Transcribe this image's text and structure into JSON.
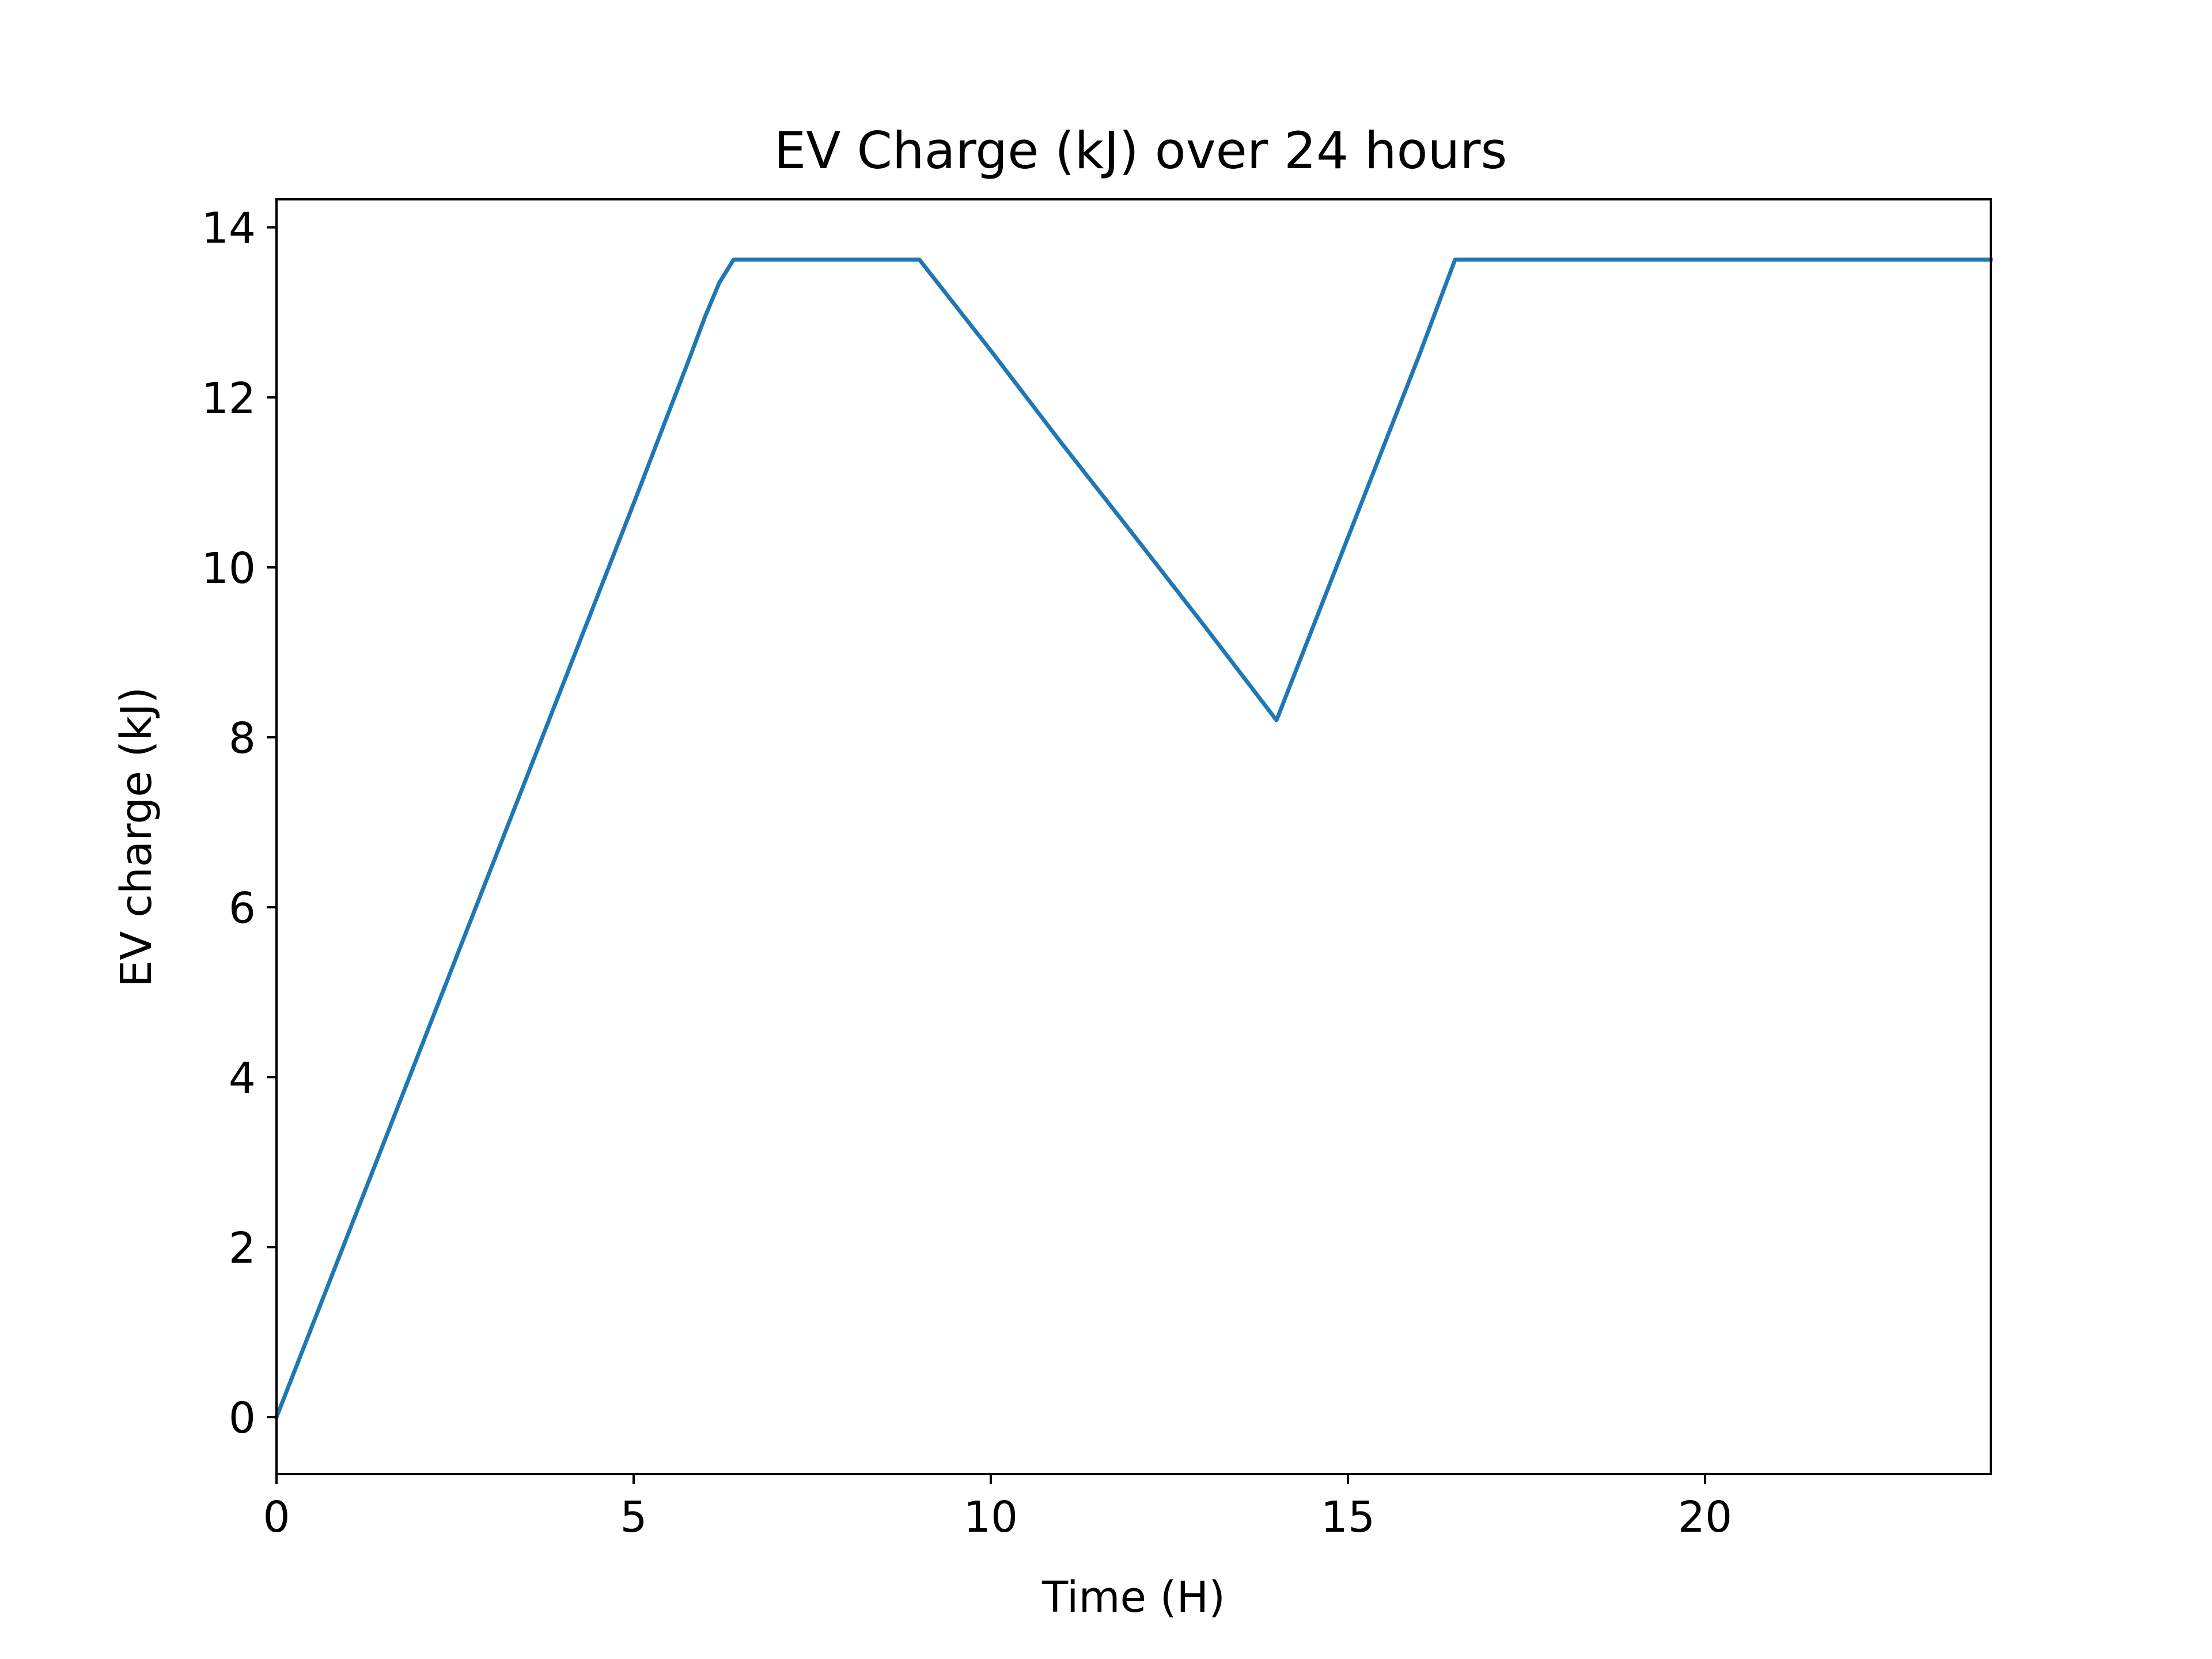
{
  "chart_data": {
    "type": "line",
    "title": "EV Charge (kJ) over 24 hours",
    "xlabel": "Time (H)",
    "ylabel": "EV charge (kJ)",
    "xlim": [
      0,
      24
    ],
    "ylim": [
      -0.67,
      14.33
    ],
    "xticks": [
      0,
      5,
      10,
      15,
      20
    ],
    "yticks": [
      0,
      2,
      4,
      6,
      8,
      10,
      12,
      14
    ],
    "grid": false,
    "legend": "none",
    "line_color": "#1f77b4",
    "series": [
      {
        "x": [
          0,
          1,
          2,
          3,
          4,
          5,
          5.8,
          6.0,
          6.2,
          6.4,
          9.0,
          10,
          11,
          12,
          13,
          14,
          15,
          16,
          16.5,
          17,
          18,
          19,
          20,
          21,
          22,
          23,
          24
        ],
        "y": [
          0,
          2.15,
          4.3,
          6.45,
          8.6,
          10.75,
          12.5,
          12.95,
          13.35,
          13.62,
          13.62,
          12.55,
          11.45,
          10.38,
          9.3,
          8.2,
          10.35,
          12.5,
          13.62,
          13.62,
          13.62,
          13.62,
          13.62,
          13.62,
          13.62,
          13.62,
          13.62
        ]
      }
    ]
  }
}
